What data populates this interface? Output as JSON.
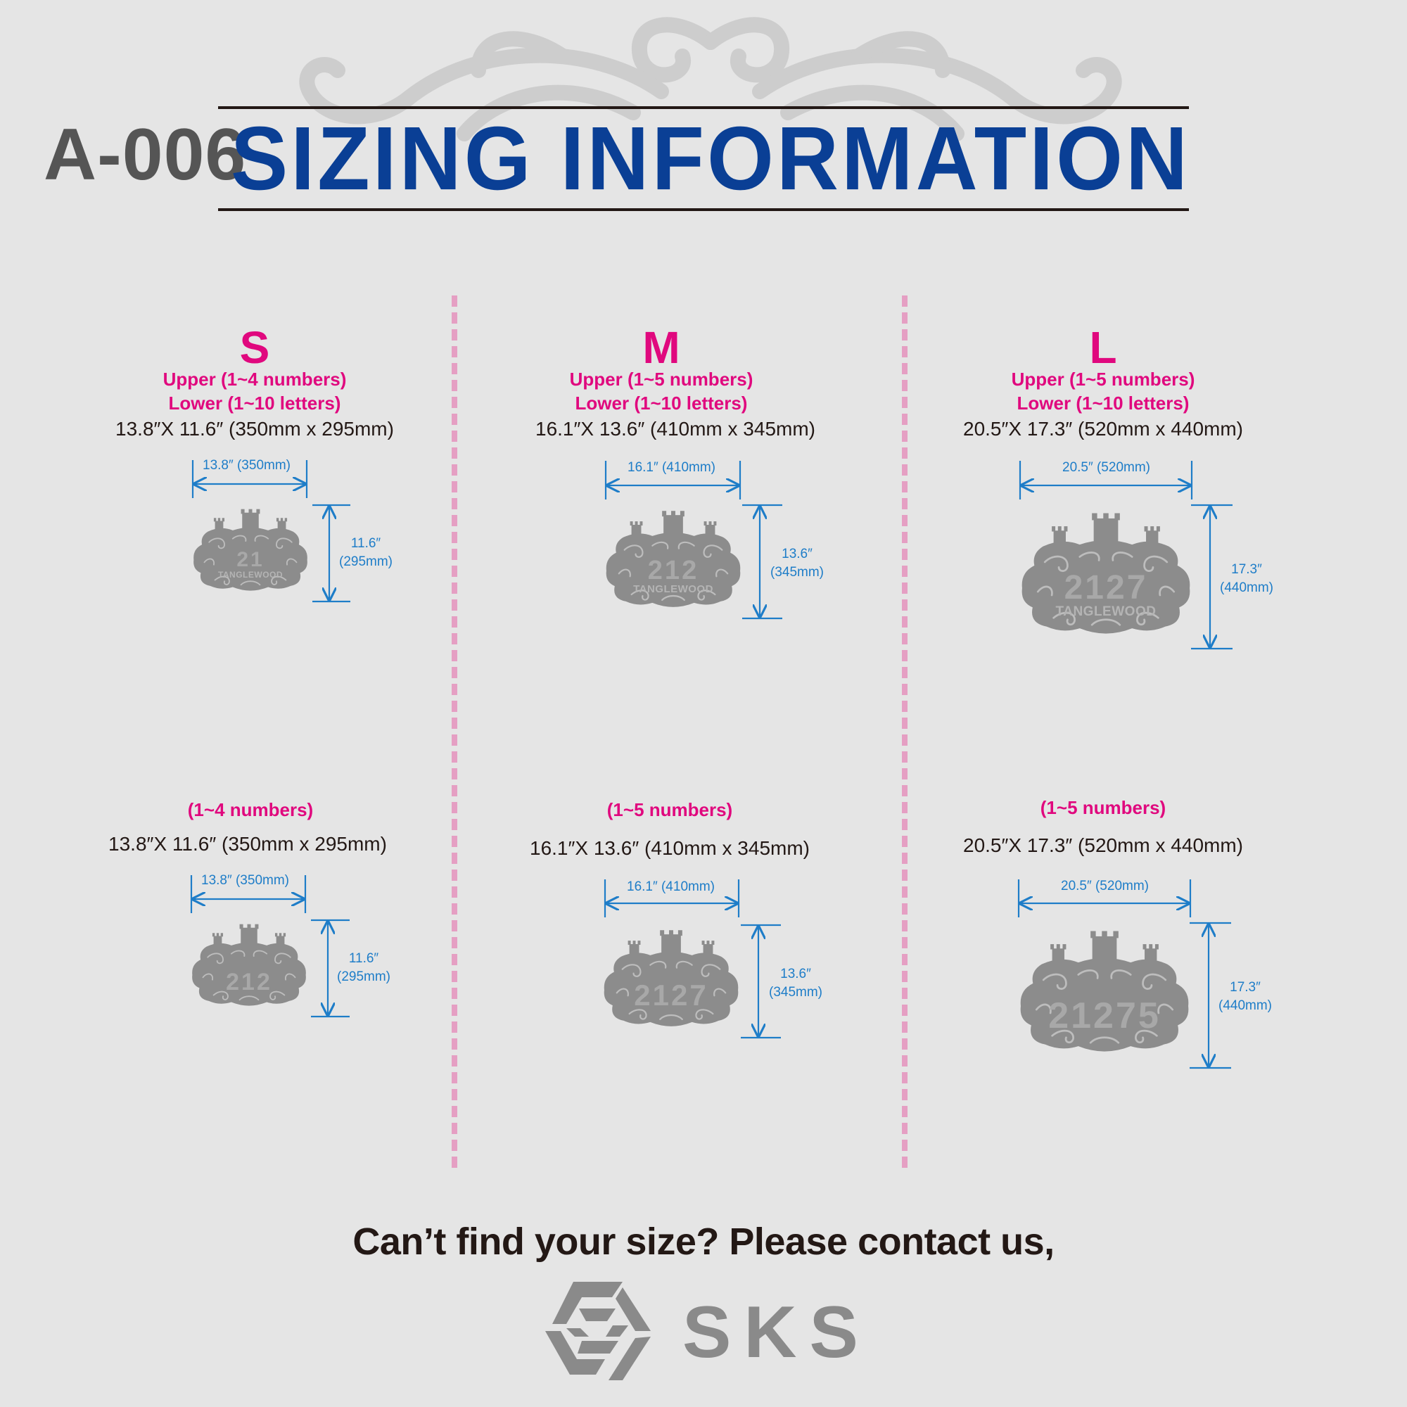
{
  "header": {
    "model_code": "A-006",
    "title": "SIZING INFORMATION"
  },
  "colors": {
    "title_blue": "#0a3f95",
    "accent_pink": "#e0087e",
    "divider_pink": "#e59fc3",
    "dimension_blue": "#1e7dc8",
    "plaque_gray": "#8c8c8c",
    "background": "#e5e5e5"
  },
  "sizes": [
    {
      "letter": "S",
      "with_name": {
        "upper": "Upper  (1~4 numbers)",
        "lower": "Lower (1~10 letters)",
        "dims": "13.8″X 11.6″ (350mm x 295mm)",
        "width_label": "13.8″ (350mm)",
        "height_label_1": "11.6″",
        "height_label_2": "(295mm)",
        "plaque_number": "21",
        "plaque_word": "TANGLEWOOD"
      },
      "number_only": {
        "limit": "(1~4 numbers)",
        "dims": "13.8″X 11.6″ (350mm x 295mm)",
        "width_label": "13.8″ (350mm)",
        "height_label_1": "11.6″",
        "height_label_2": "(295mm)",
        "plaque_number": "212"
      }
    },
    {
      "letter": "M",
      "with_name": {
        "upper": "Upper (1~5 numbers)",
        "lower": "Lower (1~10 letters)",
        "dims": "16.1″X 13.6″ (410mm x 345mm)",
        "width_label": "16.1″ (410mm)",
        "height_label_1": "13.6″",
        "height_label_2": "(345mm)",
        "plaque_number": "212",
        "plaque_word": "TANGLEWOOD"
      },
      "number_only": {
        "limit": "(1~5 numbers)",
        "dims": "16.1″X 13.6″ (410mm x 345mm)",
        "width_label": "16.1″ (410mm)",
        "height_label_1": "13.6″",
        "height_label_2": "(345mm)",
        "plaque_number": "2127"
      }
    },
    {
      "letter": "L",
      "with_name": {
        "upper": "Upper (1~5 numbers)",
        "lower": "Lower (1~10 letters)",
        "dims": "20.5″X 17.3″ (520mm x 440mm)",
        "width_label": "20.5″ (520mm)",
        "height_label_1": "17.3″",
        "height_label_2": "(440mm)",
        "plaque_number": "2127",
        "plaque_word": "TANGLEWOOD"
      },
      "number_only": {
        "limit": "(1~5 numbers)",
        "dims": "20.5″X 17.3″ (520mm x 440mm)",
        "width_label": "20.5″ (520mm)",
        "height_label_1": "17.3″",
        "height_label_2": "(440mm)",
        "plaque_number": "21275"
      }
    }
  ],
  "footer": {
    "contact_text": "Can’t find your size? Please contact us,",
    "brand": "SKS",
    "logo_icon": "sks-hexagon-logo-icon"
  }
}
